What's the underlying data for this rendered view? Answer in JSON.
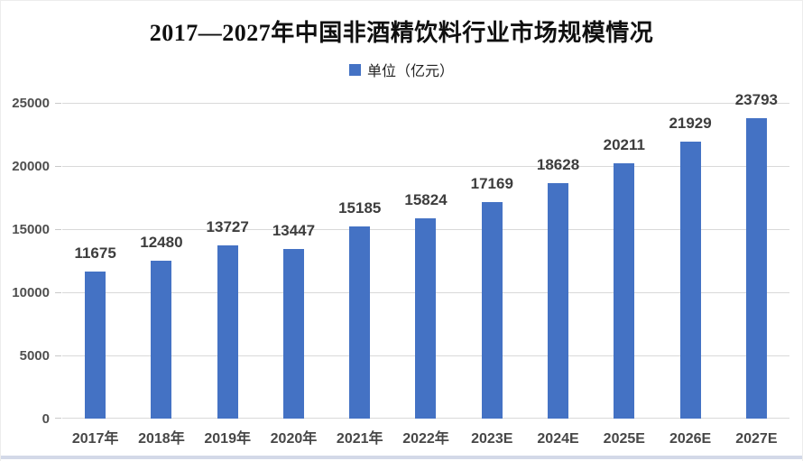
{
  "title": "2017—2027年中国非酒精饮料行业市场规模情况",
  "legend": {
    "label": "单位（亿元）",
    "marker_color": "#4472C4"
  },
  "colors": {
    "bar": "#4472C4",
    "gridline": "#d9d9d9",
    "axis_text": "#4f4f4f",
    "data_label_text": "#3d3d3d",
    "bottom_border": "#d3d9e8"
  },
  "chart_data": {
    "type": "bar",
    "title": "2017—2027年中国非酒精饮料行业市场规模情况",
    "legend_entries": [
      "单位（亿元）"
    ],
    "legend_position": "top",
    "categories": [
      "2017年",
      "2018年",
      "2019年",
      "2020年",
      "2021年",
      "2022年",
      "2023E",
      "2024E",
      "2025E",
      "2026E",
      "2027E"
    ],
    "values": [
      11675,
      12480,
      13727,
      13447,
      15185,
      15824,
      17169,
      18628,
      20211,
      21929,
      23793
    ],
    "xlabel": "",
    "ylabel": "",
    "ylim": [
      0,
      25000
    ],
    "yticks": [
      0,
      5000,
      10000,
      15000,
      20000,
      25000
    ],
    "grid": true,
    "data_labels": true
  }
}
